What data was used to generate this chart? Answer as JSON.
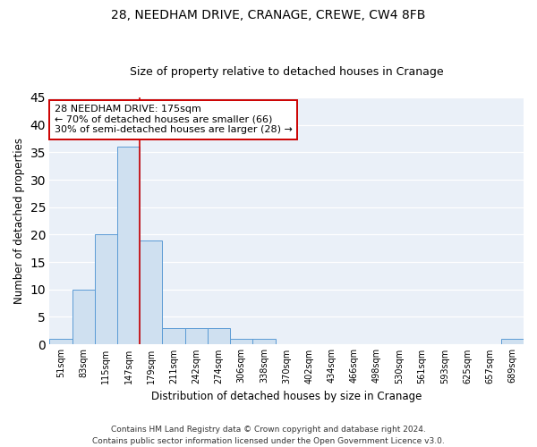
{
  "title1": "28, NEEDHAM DRIVE, CRANAGE, CREWE, CW4 8FB",
  "title2": "Size of property relative to detached houses in Cranage",
  "xlabel": "Distribution of detached houses by size in Cranage",
  "ylabel": "Number of detached properties",
  "categories": [
    "51sqm",
    "83sqm",
    "115sqm",
    "147sqm",
    "179sqm",
    "211sqm",
    "242sqm",
    "274sqm",
    "306sqm",
    "338sqm",
    "370sqm",
    "402sqm",
    "434sqm",
    "466sqm",
    "498sqm",
    "530sqm",
    "561sqm",
    "593sqm",
    "625sqm",
    "657sqm",
    "689sqm"
  ],
  "values": [
    1,
    10,
    20,
    36,
    19,
    3,
    3,
    3,
    1,
    1,
    0,
    0,
    0,
    0,
    0,
    0,
    0,
    0,
    0,
    0,
    1
  ],
  "bar_color": "#cfe0f0",
  "bar_edgecolor": "#5b9bd5",
  "annotation_box_text": "28 NEEDHAM DRIVE: 175sqm\n← 70% of detached houses are smaller (66)\n30% of semi-detached houses are larger (28) →",
  "annotation_box_color": "#ffffff",
  "annotation_box_edgecolor": "#cc0000",
  "annotation_text_fontsize": 8,
  "vline_color": "#cc0000",
  "vline_x": 3.5,
  "ylim": [
    0,
    45
  ],
  "yticks": [
    0,
    5,
    10,
    15,
    20,
    25,
    30,
    35,
    40,
    45
  ],
  "background_color": "#eaf0f8",
  "grid_color": "#ffffff",
  "footer": "Contains HM Land Registry data © Crown copyright and database right 2024.\nContains public sector information licensed under the Open Government Licence v3.0.",
  "title1_fontsize": 10,
  "title2_fontsize": 9,
  "xlabel_fontsize": 8.5,
  "ylabel_fontsize": 8.5,
  "footer_fontsize": 6.5
}
